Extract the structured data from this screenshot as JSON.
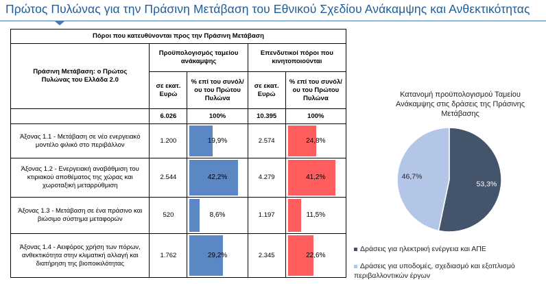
{
  "title": "Πρώτος Πυλώνας για την Πράσινη Μετάβαση του Εθνικού Σχεδίου Ανάκαμψης και Ανθεκτικότητας",
  "table": {
    "header_top": "Πόροι που κατευθύνονται προς την Πράσινη Μετάβαση",
    "row_header": "Πράσινη Μετάβαση: ο Πρώτος Πυλώνας του Ελλάδα 2.0",
    "group1": "Προϋπολογισμός ταμείου ανάκαμψης",
    "group2": "Επενδυτικοί πόροι που κινητοποιούνται",
    "col_amount": "σε εκατ. Ευρώ",
    "col_pct": "% επί του συνόλ/ου του Πρώτου Πυλώνα",
    "totals": {
      "rrf_amount": "6.026",
      "rrf_pct": "100%",
      "inv_amount": "10.395",
      "inv_pct": "100%"
    },
    "rows": [
      {
        "label": "Άξονας 1.1 - Μετάβαση σε νέο ενεργειακό μοντέλο φιλικό στο περιβάλλον",
        "rrf_amount": "1.200",
        "rrf_pct_label": "19,9%",
        "rrf_pct": 19.9,
        "inv_amount": "2.574",
        "inv_pct_label": "24,8%",
        "inv_pct": 24.8
      },
      {
        "label": "Άξονας 1.2 - Ενεργειακή αναβάθμιση του κτιριακού αποθέματος της χώρας και χωροταξική μεταρρύθμιση",
        "rrf_amount": "2.544",
        "rrf_pct_label": "42,2%",
        "rrf_pct": 42.2,
        "inv_amount": "4.279",
        "inv_pct_label": "41,2%",
        "inv_pct": 41.2
      },
      {
        "label": "Άξονας 1.3 - Μετάβαση σε ένα πράσινο και βιώσιμο σύστημα μεταφορών",
        "rrf_amount": "520",
        "rrf_pct_label": "8,6%",
        "rrf_pct": 8.6,
        "inv_amount": "1.197",
        "inv_pct_label": "11,5%",
        "inv_pct": 11.5
      },
      {
        "label": "Άξονας 1.4 - Αειφόρος χρήση των πόρων, ανθεκτικότητα στην κλιματική αλλαγή και διατήρηση της βιοποικιλότητας",
        "rrf_amount": "1.762",
        "rrf_pct_label": "29,2%",
        "rrf_pct": 29.2,
        "inv_amount": "2.345",
        "inv_pct_label": "22,6%",
        "inv_pct": 22.6
      }
    ],
    "colors": {
      "rrf_bar": "#5b87c5",
      "inv_bar": "#ff5d5d"
    }
  },
  "chart_data": {
    "type": "pie",
    "title": "Κατανομή προϋπολογισμού Ταμείου Ανάκαμψης στις δράσεις της Πράσινης Μετάβασης",
    "slices": [
      {
        "name": "Δράσεις για ηλεκτρική ενέργεια και ΑΠΕ",
        "value": 53.3,
        "label": "53,3%",
        "color": "#44546a"
      },
      {
        "name": "Δράσεις για υποδομές, σχεδιασμό και εξοπλισμό περιβαλλοντικών έργων",
        "value": 46.7,
        "label": "46,7%",
        "color": "#b4c6e7"
      }
    ],
    "legend": "bottom"
  }
}
